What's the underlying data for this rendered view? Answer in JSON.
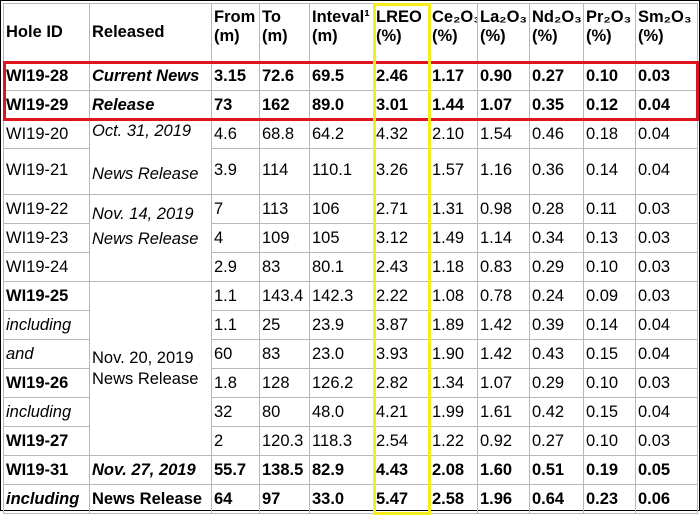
{
  "table": {
    "header": [
      [
        "Hole ID"
      ],
      [
        "Released"
      ],
      [
        "From",
        "(m)"
      ],
      [
        "To",
        "(m)"
      ],
      [
        "Inteval¹",
        "(m)"
      ],
      [
        "LREO",
        "(%)"
      ],
      [
        "Ce₂O₃",
        "(%)"
      ],
      [
        "La₂O₃",
        "(%)"
      ],
      [
        "Nd₂O₃",
        "(%)"
      ],
      [
        "Pr₂O₃",
        "(%)"
      ],
      [
        "Sm₂O₃",
        "(%)"
      ]
    ],
    "released": [
      [
        "Current News"
      ],
      [
        "Release"
      ],
      [
        "Oct. 31, 2019",
        "News Release"
      ],
      [
        "Nov. 14, 2019",
        "News Release"
      ],
      [
        "Nov. 20, 2019",
        "News Release"
      ],
      [
        "Nov. 27, 2019"
      ],
      [
        "News Release"
      ]
    ],
    "rows": [
      [
        "WI19-28",
        "3.15",
        "72.6",
        "69.5",
        "2.46",
        "1.17",
        "0.90",
        "0.27",
        "0.10",
        "0.03"
      ],
      [
        "WI19-29",
        "73",
        "162",
        "89.0",
        "3.01",
        "1.44",
        "1.07",
        "0.35",
        "0.12",
        "0.04"
      ],
      [
        "WI19-20",
        "4.6",
        "68.8",
        "64.2",
        "4.32",
        "2.10",
        "1.54",
        "0.46",
        "0.18",
        "0.04"
      ],
      [
        "WI19-21",
        "3.9",
        "114",
        "110.1",
        "3.26",
        "1.57",
        "1.16",
        "0.36",
        "0.14",
        "0.04"
      ],
      [
        "WI19-22",
        "7",
        "113",
        "106",
        "2.71",
        "1.31",
        "0.98",
        "0.28",
        "0.11",
        "0.03"
      ],
      [
        "WI19-23",
        "4",
        "109",
        "105",
        "3.12",
        "1.49",
        "1.14",
        "0.34",
        "0.13",
        "0.03"
      ],
      [
        "WI19-24",
        "2.9",
        "83",
        "80.1",
        "2.43",
        "1.18",
        "0.83",
        "0.29",
        "0.10",
        "0.03"
      ],
      [
        "WI19-25",
        "1.1",
        "143.4",
        "142.3",
        "2.22",
        "1.08",
        "0.78",
        "0.24",
        "0.09",
        "0.03"
      ],
      [
        "including",
        "1.1",
        "25",
        "23.9",
        "3.87",
        "1.89",
        "1.42",
        "0.39",
        "0.14",
        "0.04"
      ],
      [
        "and",
        "60",
        "83",
        "23.0",
        "3.93",
        "1.90",
        "1.42",
        "0.43",
        "0.15",
        "0.04"
      ],
      [
        "WI19-26",
        "1.8",
        "128",
        "126.2",
        "2.82",
        "1.34",
        "1.07",
        "0.29",
        "0.10",
        "0.03"
      ],
      [
        "including",
        "32",
        "80",
        "48.0",
        "4.21",
        "1.99",
        "1.61",
        "0.42",
        "0.15",
        "0.04"
      ],
      [
        "WI19-27",
        "2",
        "120.3",
        "118.3",
        "2.54",
        "1.22",
        "0.92",
        "0.27",
        "0.10",
        "0.03"
      ],
      [
        "WI19-31",
        "55.7",
        "138.5",
        "82.9",
        "4.43",
        "2.08",
        "1.60",
        "0.51",
        "0.19",
        "0.05"
      ],
      [
        "including",
        "64",
        "97",
        "33.0",
        "5.47",
        "2.58",
        "1.96",
        "0.64",
        "0.23",
        "0.06"
      ]
    ]
  }
}
